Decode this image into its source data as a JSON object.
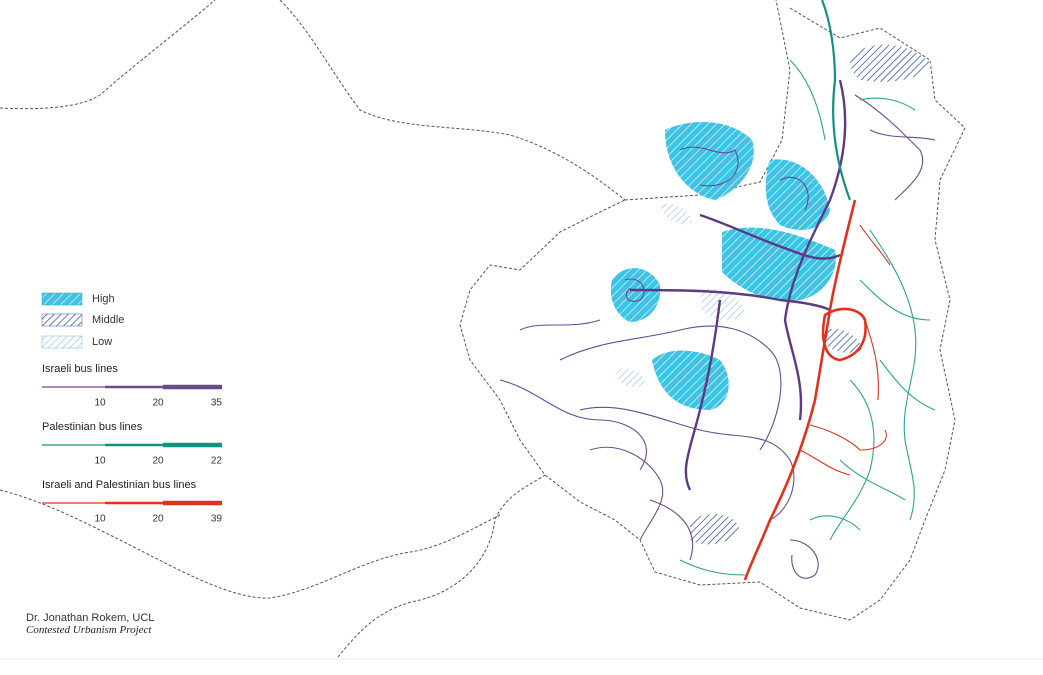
{
  "legend": {
    "areas": [
      "High",
      "Middle",
      "Low"
    ],
    "bus_lines": [
      {
        "title": "Israeli bus lines",
        "color": "#6d4a8f",
        "ticks": [
          10,
          20,
          35
        ]
      },
      {
        "title": "Palestinian bus lines",
        "color": "#13937f",
        "ticks": [
          10,
          20,
          22
        ]
      },
      {
        "title": "Israeli and Palestinian bus lines",
        "color": "#e0321e",
        "ticks": [
          10,
          20,
          39
        ]
      }
    ]
  },
  "credit": {
    "author": "Dr. Jonathan Rokem, UCL",
    "project": "Contested Urbanism Project"
  }
}
